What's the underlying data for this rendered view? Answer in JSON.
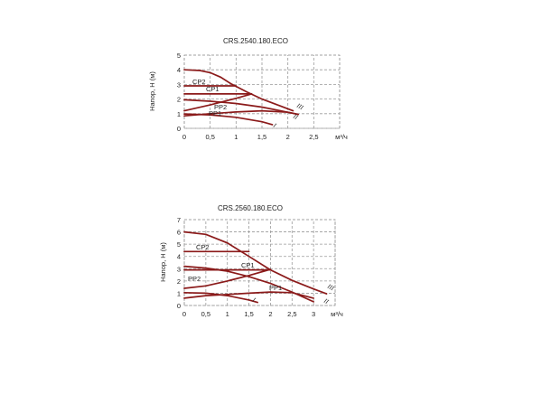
{
  "chart_data": [
    {
      "type": "line",
      "title": "CRS.2540.180.ECO",
      "ylabel": "Напор, H (м)",
      "xlabel": "м³/ч",
      "xlim": [
        0,
        3
      ],
      "ylim": [
        0,
        5
      ],
      "x_ticks": [
        "0",
        "0,5",
        "1",
        "1,5",
        "2",
        "2,5"
      ],
      "y_ticks": [
        "0",
        "1",
        "2",
        "3",
        "4",
        "5"
      ],
      "grid": true,
      "series": [
        {
          "name": "III",
          "x": [
            0,
            0.3,
            0.5,
            0.7,
            0.9,
            1.2,
            1.5,
            1.8,
            2.1
          ],
          "y": [
            4.0,
            3.95,
            3.8,
            3.5,
            3.05,
            2.5,
            2.0,
            1.6,
            1.2
          ]
        },
        {
          "name": "CP2",
          "x": [
            0,
            0.5,
            1.0
          ],
          "y": [
            2.9,
            2.9,
            2.9
          ]
        },
        {
          "name": "CP1",
          "x": [
            0,
            0.5,
            1.0,
            1.3
          ],
          "y": [
            2.35,
            2.35,
            2.35,
            2.35
          ]
        },
        {
          "name": "PP2",
          "x": [
            0,
            0.5,
            1.0,
            1.3
          ],
          "y": [
            1.2,
            1.6,
            2.05,
            2.35
          ]
        },
        {
          "name": "II",
          "x": [
            0,
            0.5,
            1.0,
            1.5,
            2.0,
            2.2
          ],
          "y": [
            1.95,
            1.85,
            1.7,
            1.45,
            1.1,
            0.95
          ]
        },
        {
          "name": "PP1",
          "x": [
            0,
            0.5,
            1.0,
            1.5,
            2.0,
            2.2
          ],
          "y": [
            0.85,
            1.0,
            1.12,
            1.2,
            1.1,
            0.95
          ]
        },
        {
          "name": "I",
          "x": [
            0,
            0.5,
            1.0,
            1.5,
            1.7
          ],
          "y": [
            0.98,
            0.92,
            0.75,
            0.45,
            0.25
          ]
        }
      ],
      "curve_labels": [
        "CP2",
        "CP1",
        "PP2",
        "PP1"
      ],
      "roman_labels": [
        "III",
        "II",
        "I"
      ]
    },
    {
      "type": "line",
      "title": "CRS.2560.180.ECO",
      "ylabel": "Напор, H (м)",
      "xlabel": "м³/ч",
      "xlim": [
        0,
        3.5
      ],
      "ylim": [
        0,
        7
      ],
      "x_ticks": [
        "0",
        "0,5",
        "1",
        "1,5",
        "2",
        "2,5",
        "3"
      ],
      "y_ticks": [
        "0",
        "1",
        "2",
        "3",
        "4",
        "5",
        "6",
        "7"
      ],
      "grid": true,
      "series": [
        {
          "name": "III",
          "x": [
            0,
            0.5,
            1.0,
            1.5,
            2.0,
            2.5,
            3.0,
            3.3
          ],
          "y": [
            6.0,
            5.8,
            5.1,
            4.0,
            2.9,
            2.05,
            1.35,
            0.95
          ]
        },
        {
          "name": "CP2",
          "x": [
            0,
            0.5,
            1.0,
            1.5
          ],
          "y": [
            4.4,
            4.4,
            4.4,
            4.4
          ]
        },
        {
          "name": "CP1",
          "x": [
            0,
            0.5,
            1.0,
            1.5,
            2.0
          ],
          "y": [
            2.9,
            2.9,
            2.9,
            2.9,
            2.9
          ]
        },
        {
          "name": "II",
          "x": [
            0,
            0.5,
            1.0,
            1.5,
            2.0,
            2.5,
            3.0
          ],
          "y": [
            3.2,
            3.05,
            2.8,
            2.35,
            1.8,
            1.1,
            0.3
          ]
        },
        {
          "name": "PP2",
          "x": [
            0,
            0.5,
            1.0,
            1.5,
            2.0
          ],
          "y": [
            1.4,
            1.6,
            2.0,
            2.45,
            2.95
          ]
        },
        {
          "name": "PP1",
          "x": [
            0,
            0.5,
            1.0,
            1.5,
            2.0,
            2.5,
            3.0
          ],
          "y": [
            0.6,
            0.8,
            0.9,
            1.0,
            1.1,
            1.05,
            0.6
          ]
        },
        {
          "name": "I",
          "x": [
            0,
            0.5,
            1.0,
            1.5,
            1.7
          ],
          "y": [
            1.05,
            1.0,
            0.8,
            0.45,
            0.25
          ]
        }
      ],
      "curve_labels": [
        "CP2",
        "CP1",
        "PP2",
        "PP1"
      ],
      "roman_labels": [
        "III",
        "II",
        "I"
      ]
    }
  ]
}
